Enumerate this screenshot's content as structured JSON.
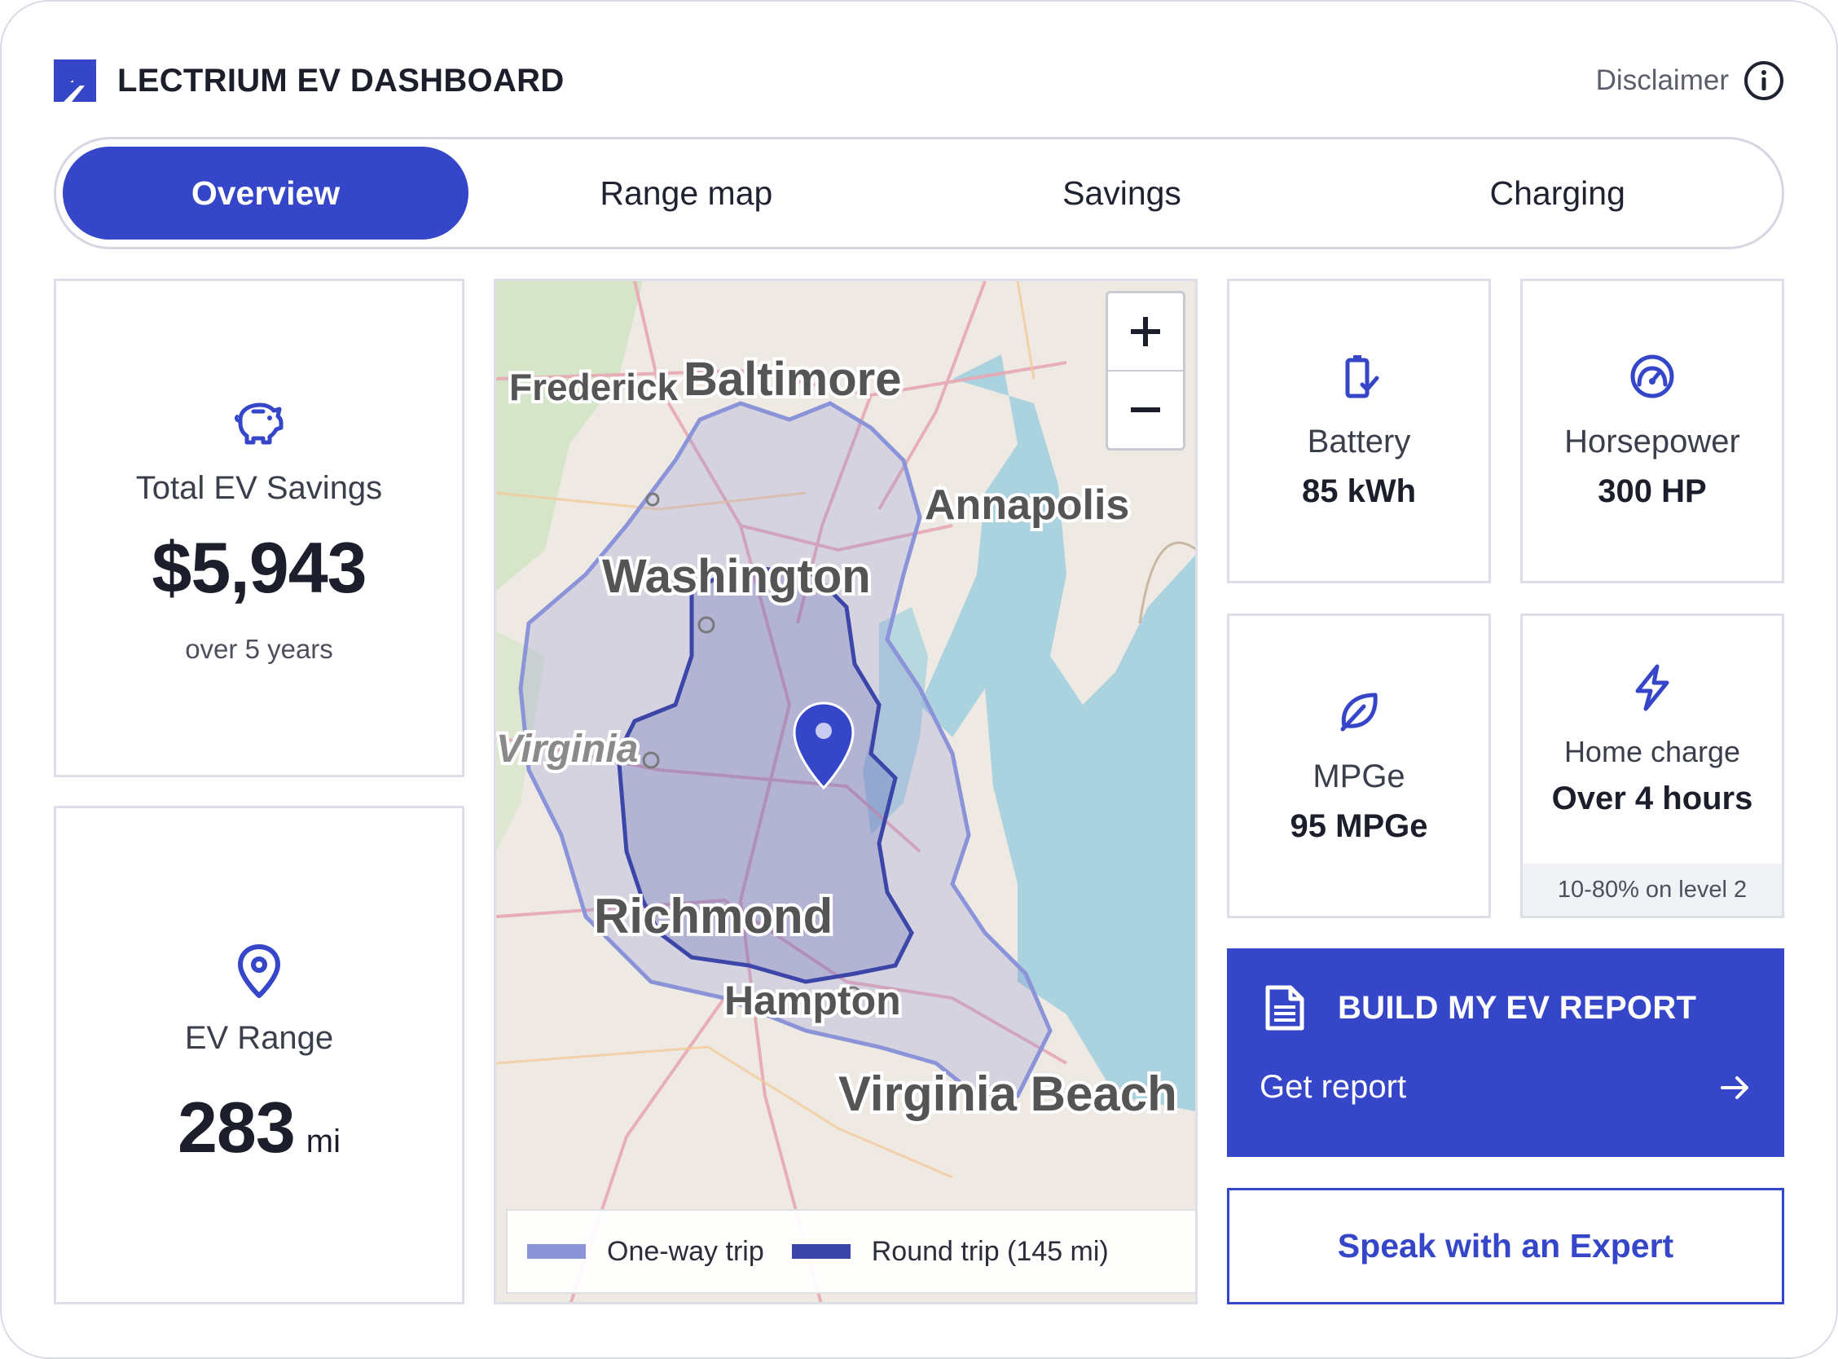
{
  "header": {
    "brand_name": "LECTRIUM EV DASHBOARD",
    "disclaimer_label": "Disclaimer"
  },
  "tabs": [
    {
      "label": "Overview",
      "active": true
    },
    {
      "label": "Range map",
      "active": false
    },
    {
      "label": "Savings",
      "active": false
    },
    {
      "label": "Charging",
      "active": false
    }
  ],
  "savings": {
    "icon": "piggy-bank-icon",
    "label": "Total EV Savings",
    "value": "$5,943",
    "sub": "over 5 years"
  },
  "range": {
    "icon": "location-pin-icon",
    "label": "EV Range",
    "value": "283",
    "unit": "mi"
  },
  "map": {
    "cities": [
      "Frederick",
      "Baltimore",
      "Annapolis",
      "Washington",
      "Virginia",
      "Richmond",
      "Hampton",
      "Virginia Beach"
    ],
    "legend": {
      "one_way": "One-way trip",
      "round_trip": "Round trip (145 mi)"
    },
    "colors": {
      "one_way": "#8b93d9",
      "round_trip": "#3b46a8",
      "water": "#aad3df",
      "land": "#eeeae3"
    }
  },
  "stats": {
    "battery": {
      "icon": "battery-icon",
      "label": "Battery",
      "value": "85 kWh"
    },
    "horsepower": {
      "icon": "gauge-icon",
      "label": "Horsepower",
      "value": "300 HP"
    },
    "mpge": {
      "icon": "leaf-icon",
      "label": "MPGe",
      "value": "95 MPGe"
    },
    "home_charge": {
      "icon": "lightning-icon",
      "label": "Home charge",
      "value": "Over 4 hours",
      "footnote": "10-80% on level 2"
    }
  },
  "report": {
    "icon": "document-icon",
    "title": "BUILD MY EV REPORT",
    "link": "Get report"
  },
  "expert": {
    "label": "Speak with an Expert"
  },
  "colors": {
    "accent": "#3546c8",
    "text": "#1c1f2b",
    "border": "#dcdee8"
  }
}
